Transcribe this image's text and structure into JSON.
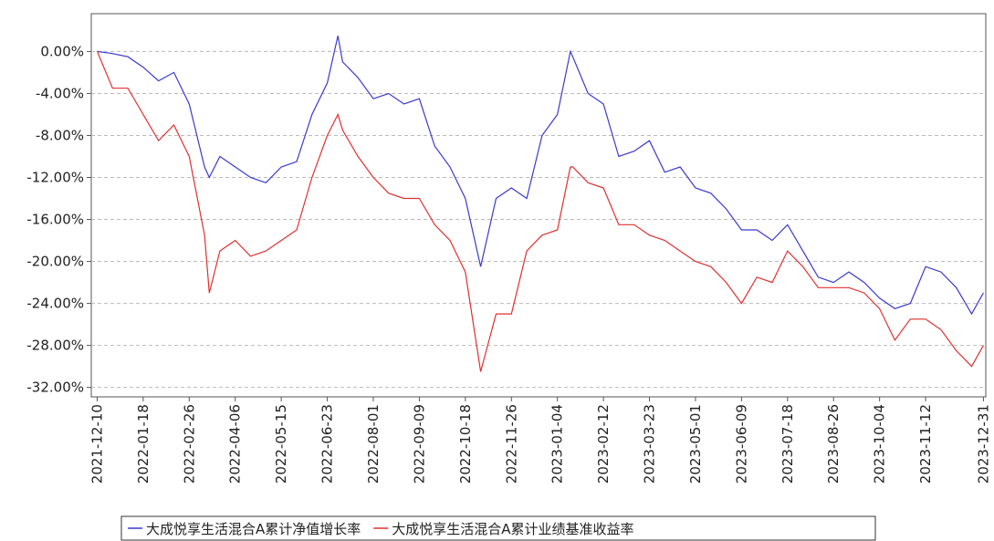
{
  "chart_data": {
    "type": "line",
    "x": [
      "2021-12-10",
      "2021-12-23",
      "2022-01-05",
      "2022-01-18",
      "2022-01-31",
      "2022-02-13",
      "2022-02-26",
      "2022-03-11",
      "2022-03-15",
      "2022-03-24",
      "2022-04-06",
      "2022-04-19",
      "2022-05-02",
      "2022-05-15",
      "2022-05-28",
      "2022-06-10",
      "2022-06-23",
      "2022-07-02",
      "2022-07-06",
      "2022-07-19",
      "2022-08-01",
      "2022-08-14",
      "2022-08-27",
      "2022-09-09",
      "2022-09-22",
      "2022-10-05",
      "2022-10-18",
      "2022-10-31",
      "2022-11-13",
      "2022-11-26",
      "2022-12-09",
      "2022-12-22",
      "2023-01-04",
      "2023-01-15",
      "2023-01-17",
      "2023-01-30",
      "2023-02-12",
      "2023-02-25",
      "2023-03-10",
      "2023-03-23",
      "2023-04-05",
      "2023-04-18",
      "2023-05-01",
      "2023-05-14",
      "2023-05-27",
      "2023-06-09",
      "2023-06-22",
      "2023-07-05",
      "2023-07-18",
      "2023-07-31",
      "2023-08-13",
      "2023-08-26",
      "2023-09-08",
      "2023-09-21",
      "2023-10-04",
      "2023-10-17",
      "2023-10-30",
      "2023-11-12",
      "2023-11-25",
      "2023-12-08",
      "2023-12-21",
      "2023-12-31"
    ],
    "series": [
      {
        "name": "大成悦享生活混合A累计净值增长率",
        "color": "#3a3ad0",
        "values": [
          0,
          -0.2,
          -0.5,
          -1.5,
          -2.8,
          -2.0,
          -5,
          -11,
          -12,
          -10,
          -11,
          -12,
          -12.5,
          -11,
          -10.5,
          -6,
          -3,
          1.5,
          -1,
          -2.5,
          -4.5,
          -4,
          -5,
          -4.5,
          -9,
          -11,
          -14,
          -20.5,
          -14,
          -13,
          -14,
          -8,
          -6,
          0,
          -0.5,
          -4,
          -5,
          -10,
          -9.5,
          -8.5,
          -11.5,
          -11,
          -13,
          -13.5,
          -15,
          -17,
          -17,
          -18,
          -16.5,
          -19,
          -21.5,
          -22,
          -21,
          -22,
          -23.5,
          -24.5,
          -24,
          -20.5,
          -21,
          -22.5,
          -25,
          -23
        ]
      },
      {
        "name": "大成悦享生活混合A累计业绩基准收益率",
        "color": "#e03030",
        "values": [
          0,
          -3.5,
          -3.5,
          -6,
          -8.5,
          -7,
          -10,
          -17.5,
          -23,
          -19,
          -18,
          -19.5,
          -19,
          -18,
          -17,
          -12,
          -8,
          -6,
          -7.5,
          -10,
          -12,
          -13.5,
          -14,
          -14,
          -16.5,
          -18,
          -21,
          -30.5,
          -25,
          -25,
          -19,
          -17.5,
          -17,
          -11,
          -11,
          -12.5,
          -13,
          -16.5,
          -16.5,
          -17.5,
          -18,
          -19,
          -20,
          -20.5,
          -22,
          -24,
          -21.5,
          -22,
          -19,
          -20.5,
          -22.5,
          -22.5,
          -22.5,
          -23,
          -24.5,
          -27.5,
          -25.5,
          -25.5,
          -26.5,
          -28.5,
          -30,
          -28
        ]
      }
    ],
    "xlim": [
      "2021-12-05",
      "2024-01-02"
    ],
    "xticks": [
      "2021-12-10",
      "2022-01-18",
      "2022-02-26",
      "2022-04-06",
      "2022-05-15",
      "2022-06-23",
      "2022-08-01",
      "2022-09-09",
      "2022-10-18",
      "2022-11-26",
      "2023-01-04",
      "2023-02-12",
      "2023-03-23",
      "2023-05-01",
      "2023-06-09",
      "2023-07-18",
      "2023-08-26",
      "2023-10-04",
      "2023-11-12",
      "2023-12-31"
    ],
    "ylim": [
      -32.9,
      3.6
    ],
    "yticks": [
      {
        "value": 0,
        "label": "0.00%"
      },
      {
        "value": -4,
        "label": "-4.00%"
      },
      {
        "value": -8,
        "label": "-8.00%"
      },
      {
        "value": -12,
        "label": "-12.00%"
      },
      {
        "value": -16,
        "label": "-16.00%"
      },
      {
        "value": -20,
        "label": "-20.00%"
      },
      {
        "value": -24,
        "label": "-24.00%"
      },
      {
        "value": -28,
        "label": "-28.00%"
      },
      {
        "value": -32,
        "label": "-32.00%"
      }
    ],
    "grid": true
  }
}
